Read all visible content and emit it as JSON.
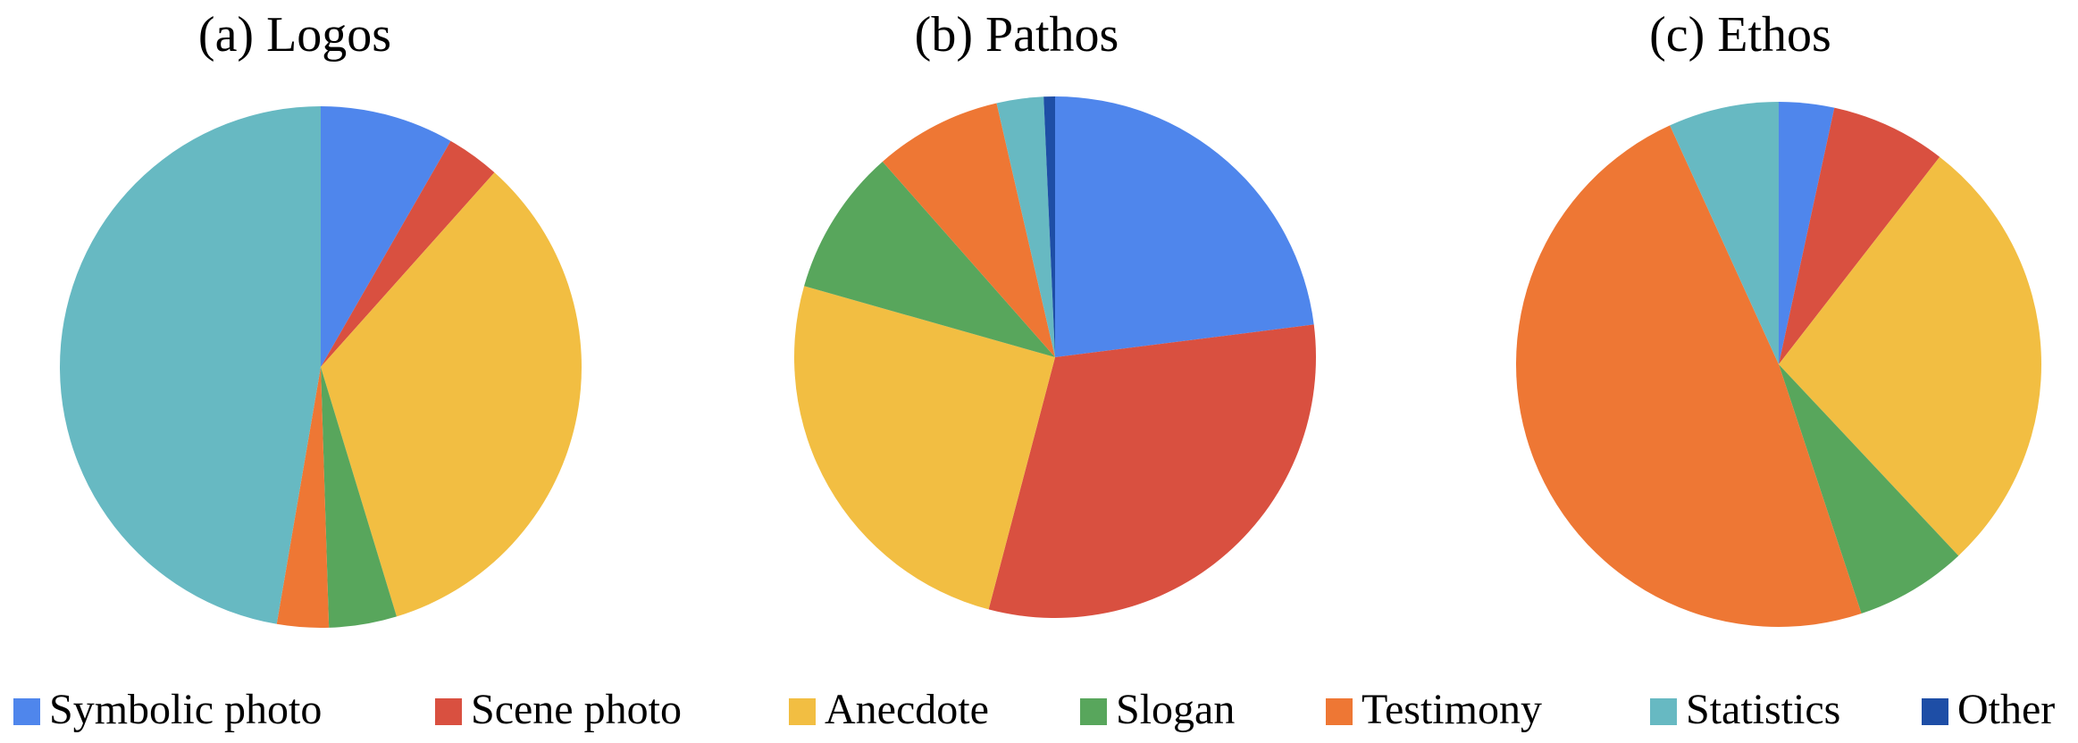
{
  "chart_data": [
    {
      "type": "pie",
      "title": "(a) Logos",
      "values": [
        8.3,
        3.3,
        33.7,
        4.2,
        3.2,
        47.3,
        0
      ]
    },
    {
      "type": "pie",
      "title": "(b) Pathos",
      "values": [
        23.0,
        31.1,
        25.3,
        9.1,
        7.9,
        2.9,
        0.7
      ]
    },
    {
      "type": "pie",
      "title": "(c) Ethos",
      "values": [
        3.4,
        7.1,
        27.5,
        6.9,
        48.3,
        6.8,
        0
      ]
    }
  ],
  "legend": {
    "labels": [
      "Symbolic photo",
      "Scene photo",
      "Anecdote",
      "Slogan",
      "Testimony",
      "Statistics",
      "Other"
    ],
    "colors": [
      "#4f86ec",
      "#d95040",
      "#f2be42",
      "#58a65c",
      "#ee7734",
      "#67b9c2",
      "#1e4ea6"
    ]
  }
}
